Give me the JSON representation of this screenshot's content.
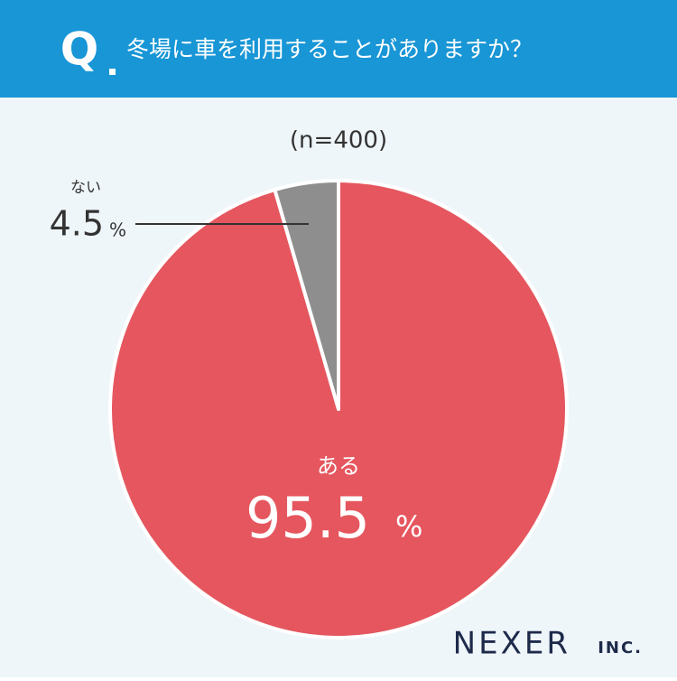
{
  "chart_data": {
    "type": "pie",
    "question_mark": "Q",
    "title": "冬場に車を利用することがありますか？",
    "subtitle": "(n=400)",
    "categories": [
      "ある",
      "ない"
    ],
    "values": [
      95.5,
      4.5
    ],
    "unit": "%",
    "colors": [
      "#e5565e",
      "#8e8e8e"
    ],
    "start": "top",
    "direction": "clockwise"
  },
  "logo": {
    "name": "NEXER",
    "suffix": "INC."
  }
}
